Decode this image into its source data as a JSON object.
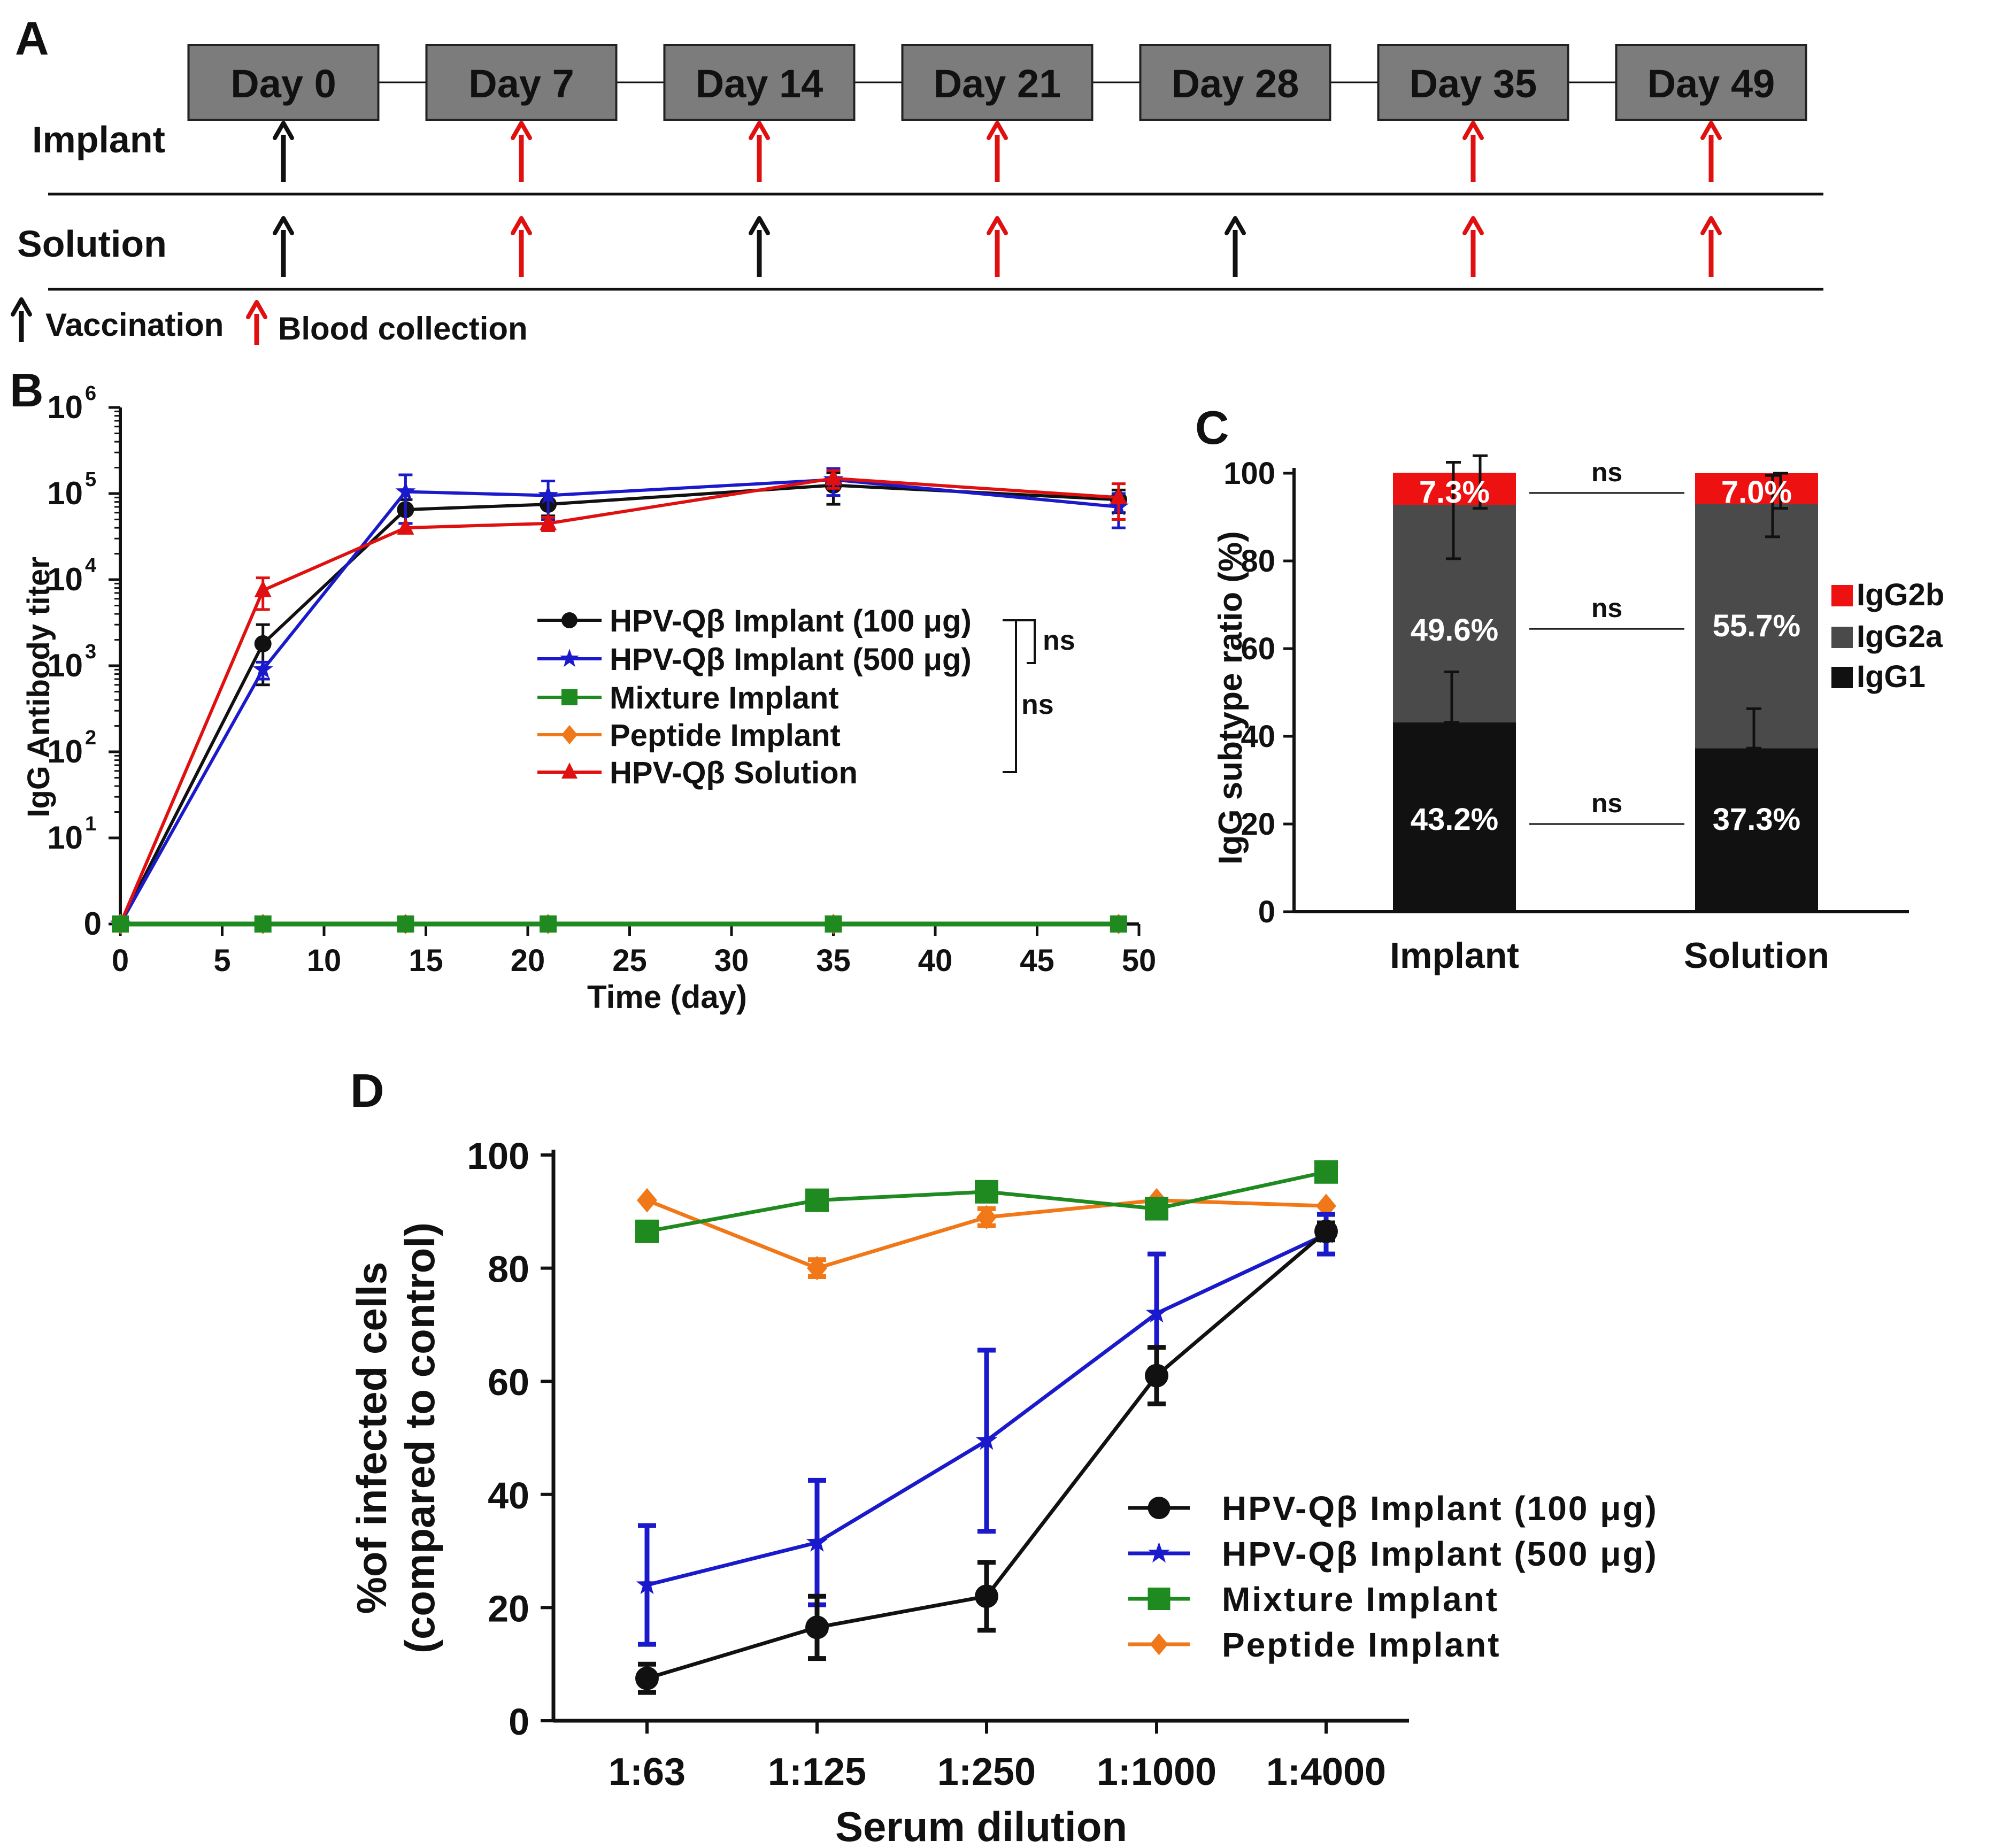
{
  "panel_labels": {
    "a": "A",
    "b": "B",
    "c": "C",
    "d": "D"
  },
  "colors": {
    "black": "#111111",
    "blue": "#1a1acc",
    "green": "#1f8a1f",
    "orange": "#f07818",
    "red": "#e01010",
    "box_fill": "#7c7c7c",
    "bar_dark": "#4a4a4a",
    "bar_red": "#ee1111"
  },
  "timeline": {
    "days": [
      "Day 0",
      "Day 7",
      "Day 14",
      "Day 21",
      "Day 28",
      "Day 35",
      "Day 49"
    ],
    "rows": [
      {
        "label": "Implant",
        "arrows": [
          "vaccination",
          "blood",
          "blood",
          "blood",
          "none",
          "blood",
          "blood"
        ]
      },
      {
        "label": "Solution",
        "arrows": [
          "vaccination",
          "blood",
          "vaccination",
          "blood",
          "vaccination",
          "blood",
          "blood"
        ]
      }
    ],
    "legend": {
      "vaccination": "Vaccination",
      "blood": "Blood collection"
    }
  },
  "chart_data": [
    {
      "panel": "B",
      "type": "line",
      "title": "",
      "xlabel": "Time (day)",
      "ylabel": "IgG Antibody titer",
      "scale_y": "log",
      "xlim": [
        0,
        50
      ],
      "x_ticks": [
        "0",
        "5",
        "10",
        "15",
        "20",
        "25",
        "30",
        "35",
        "40",
        "45",
        "50"
      ],
      "y_ticks": [
        {
          "base": "0",
          "exp": ""
        },
        {
          "base": "10",
          "exp": "1"
        },
        {
          "base": "10",
          "exp": "2"
        },
        {
          "base": "10",
          "exp": "3"
        },
        {
          "base": "10",
          "exp": "4"
        },
        {
          "base": "10",
          "exp": "5"
        },
        {
          "base": "10",
          "exp": "6"
        }
      ],
      "x": [
        0,
        7,
        14,
        21,
        35,
        49
      ],
      "series": [
        {
          "name": "HPV-Qβ Implant (100 μg)",
          "color": "#111111",
          "marker": "circle",
          "values": [
            1,
            1800,
            65000,
            75000,
            125000,
            85000
          ],
          "error": [
            0,
            1200,
            20000,
            20000,
            50000,
            25000
          ]
        },
        {
          "name": "HPV-Qβ Implant (500 μg)",
          "color": "#1a1acc",
          "marker": "star",
          "values": [
            1,
            900,
            105000,
            95000,
            145000,
            70000
          ],
          "error": [
            0,
            200,
            60000,
            45000,
            50000,
            30000
          ]
        },
        {
          "name": "Mixture Implant",
          "color": "#1f8a1f",
          "marker": "square",
          "values": [
            1,
            1,
            1,
            1,
            1,
            1
          ],
          "error": [
            0,
            0,
            0,
            0,
            0,
            0
          ]
        },
        {
          "name": "Peptide Implant",
          "color": "#f07818",
          "marker": "diamond",
          "values": [
            1,
            1,
            1,
            1,
            1,
            1
          ],
          "error": [
            0,
            0,
            0,
            0,
            0,
            0
          ]
        },
        {
          "name": "HPV-Qβ Solution",
          "color": "#e01010",
          "marker": "triangle",
          "values": [
            1,
            7500,
            40000,
            45000,
            150000,
            90000
          ],
          "error": [
            0,
            3000,
            0,
            8000,
            35000,
            40000
          ]
        }
      ],
      "annotations": [
        "ns",
        "ns"
      ],
      "legend_position": "center-right"
    },
    {
      "panel": "C",
      "type": "bar",
      "stacked": true,
      "xlabel": "",
      "ylabel": "IgG subtype ratio (%)",
      "ylim": [
        0,
        100
      ],
      "y_ticks": [
        "0",
        "20",
        "40",
        "60",
        "80",
        "100"
      ],
      "categories": [
        "Implant",
        "Solution"
      ],
      "series": [
        {
          "name": "IgG1",
          "color": "#111111",
          "values": [
            43.2,
            37.3
          ],
          "error": [
            11.5,
            9.0
          ],
          "labels": [
            "43.2%",
            "37.3%"
          ]
        },
        {
          "name": "IgG2a",
          "color": "#4a4a4a",
          "values": [
            49.6,
            55.7
          ],
          "error": [
            12.0,
            7.5
          ],
          "labels": [
            "49.6%",
            "55.7%"
          ]
        },
        {
          "name": "IgG2b",
          "color": "#ee1111",
          "values": [
            7.3,
            7.0
          ],
          "error": [
            3.0,
            1.0
          ],
          "labels": [
            "7.3%",
            "7.0%"
          ]
        }
      ],
      "annotations": [
        "ns",
        "ns",
        "ns"
      ],
      "legend_position": "right"
    },
    {
      "panel": "D",
      "type": "line",
      "xlabel": "Serum dilution",
      "ylabel_lines": [
        "%of infected cells",
        "(compared to control)"
      ],
      "ylim": [
        0,
        100
      ],
      "y_ticks": [
        "0",
        "20",
        "40",
        "60",
        "80",
        "100"
      ],
      "categories": [
        "1:63",
        "1:125",
        "1:250",
        "1:1000",
        "1:4000"
      ],
      "series": [
        {
          "name": "HPV-Qβ Implant (100 μg)",
          "color": "#111111",
          "marker": "circle",
          "values": [
            7.5,
            16.5,
            22,
            61,
            86.5
          ],
          "error": [
            2.5,
            5.5,
            6,
            5,
            1.5
          ]
        },
        {
          "name": "HPV-Qβ Implant (500 μg)",
          "color": "#1a1acc",
          "marker": "star",
          "values": [
            24,
            31.5,
            49.5,
            72,
            86
          ],
          "error": [
            10.5,
            11,
            16,
            10.5,
            3.5
          ]
        },
        {
          "name": "Mixture Implant",
          "color": "#1f8a1f",
          "marker": "square",
          "values": [
            86.5,
            92,
            93.5,
            90.5,
            97
          ],
          "error": [
            0,
            0,
            0,
            0,
            0
          ]
        },
        {
          "name": "Peptide Implant",
          "color": "#f07818",
          "marker": "diamond",
          "values": [
            92,
            80,
            89,
            92,
            91
          ],
          "error": [
            0,
            1.5,
            1.5,
            0,
            0
          ]
        }
      ],
      "legend_position": "bottom-right"
    }
  ]
}
